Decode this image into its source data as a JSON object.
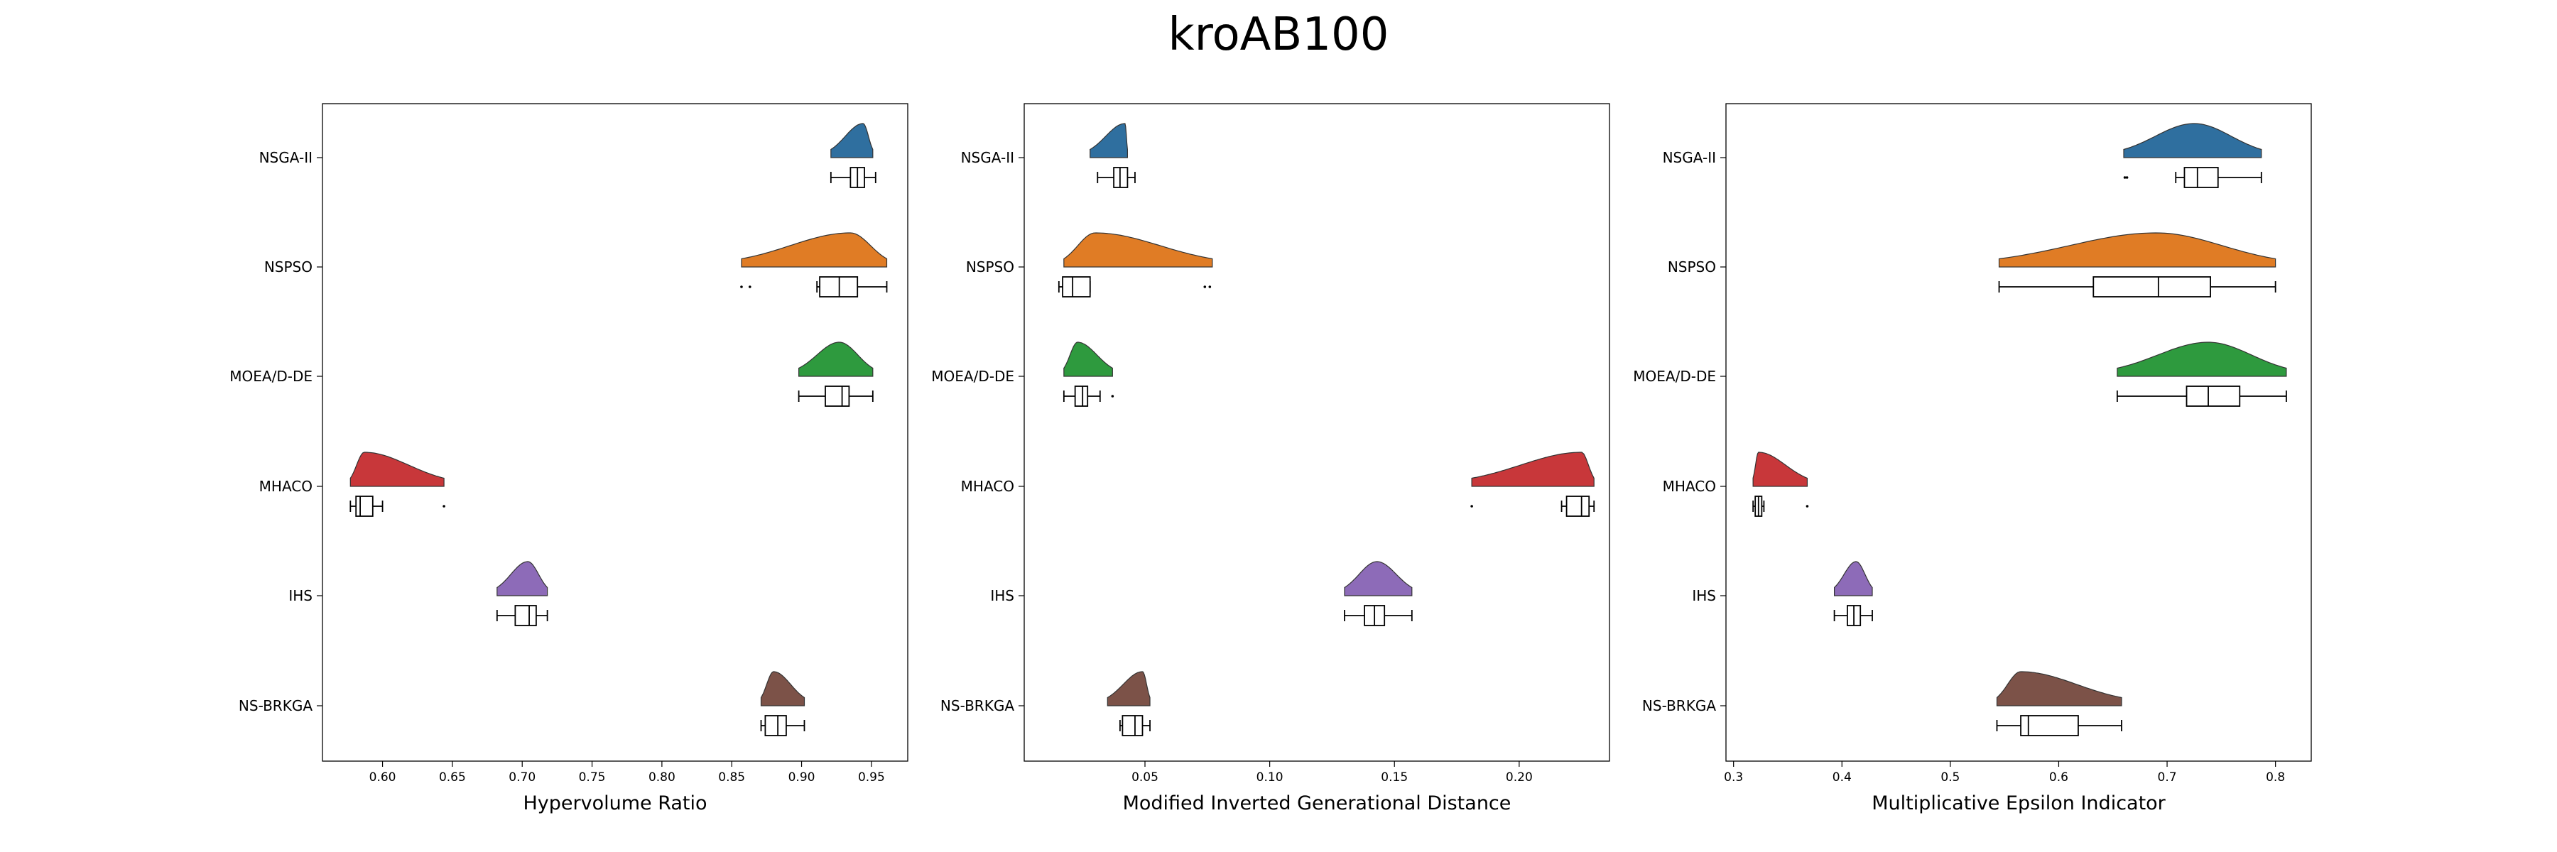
{
  "chart_data": {
    "type": "raincloud",
    "title": "kroAB100",
    "categories": [
      "NSGA-II",
      "NSPSO",
      "MOEA/D-DE",
      "MHACO",
      "IHS",
      "NS-BRKGA"
    ],
    "colors": [
      "#2f6f9f",
      "#e07c25",
      "#2e9a3e",
      "#c8373a",
      "#8d6bb8",
      "#7c5248"
    ],
    "panels": [
      {
        "xlabel": "Hypervolume Ratio",
        "xlim": [
          0.557,
          0.976
        ],
        "xticks": [
          0.6,
          0.65,
          0.7,
          0.75,
          0.8,
          0.85,
          0.9,
          0.95
        ],
        "xtick_labels": [
          "0.60",
          "0.65",
          "0.70",
          "0.75",
          "0.80",
          "0.85",
          "0.90",
          "0.95"
        ],
        "series": [
          {
            "box": {
              "whislo": 0.921,
              "q1": 0.935,
              "med": 0.94,
              "q3": 0.945,
              "whishi": 0.953
            },
            "kde": {
              "min": 0.921,
              "peak": 0.944,
              "max": 0.951
            },
            "outliers": []
          },
          {
            "box": {
              "whislo": 0.911,
              "q1": 0.913,
              "med": 0.927,
              "q3": 0.94,
              "whishi": 0.961
            },
            "kde": {
              "min": 0.857,
              "peak": 0.935,
              "max": 0.961
            },
            "outliers": [
              0.857,
              0.863
            ]
          },
          {
            "box": {
              "whislo": 0.898,
              "q1": 0.917,
              "med": 0.929,
              "q3": 0.934,
              "whishi": 0.951
            },
            "kde": {
              "min": 0.898,
              "peak": 0.927,
              "max": 0.951
            },
            "outliers": []
          },
          {
            "box": {
              "whislo": 0.577,
              "q1": 0.581,
              "med": 0.584,
              "q3": 0.593,
              "whishi": 0.6
            },
            "kde": {
              "min": 0.577,
              "peak": 0.587,
              "max": 0.644
            },
            "outliers": [
              0.644
            ]
          },
          {
            "box": {
              "whislo": 0.682,
              "q1": 0.695,
              "med": 0.705,
              "q3": 0.71,
              "whishi": 0.718
            },
            "kde": {
              "min": 0.682,
              "peak": 0.704,
              "max": 0.718
            },
            "outliers": []
          },
          {
            "box": {
              "whislo": 0.871,
              "q1": 0.874,
              "med": 0.883,
              "q3": 0.889,
              "whishi": 0.902
            },
            "kde": {
              "min": 0.871,
              "peak": 0.88,
              "max": 0.902
            },
            "outliers": []
          }
        ]
      },
      {
        "xlabel": "Modified Inverted Generational Distance",
        "xlim": [
          0.0016,
          0.2362
        ],
        "xticks": [
          0.05,
          0.1,
          0.15,
          0.2
        ],
        "xtick_labels": [
          "0.05",
          "0.10",
          "0.15",
          "0.20"
        ],
        "series": [
          {
            "box": {
              "whislo": 0.031,
              "q1": 0.0375,
              "med": 0.04,
              "q3": 0.043,
              "whishi": 0.046
            },
            "kde": {
              "min": 0.028,
              "peak": 0.042,
              "max": 0.043
            },
            "outliers": []
          },
          {
            "box": {
              "whislo": 0.0155,
              "q1": 0.017,
              "med": 0.021,
              "q3": 0.028,
              "whishi": 0.028
            },
            "kde": {
              "min": 0.0175,
              "peak": 0.03,
              "max": 0.077
            },
            "outliers": [
              0.074,
              0.076
            ]
          },
          {
            "box": {
              "whislo": 0.0175,
              "q1": 0.022,
              "med": 0.025,
              "q3": 0.027,
              "whishi": 0.032
            },
            "kde": {
              "min": 0.0175,
              "peak": 0.023,
              "max": 0.037
            },
            "outliers": [
              0.037
            ]
          },
          {
            "box": {
              "whislo": 0.217,
              "q1": 0.219,
              "med": 0.225,
              "q3": 0.228,
              "whishi": 0.23
            },
            "kde": {
              "min": 0.181,
              "peak": 0.225,
              "max": 0.23
            },
            "outliers": [
              0.181
            ]
          },
          {
            "box": {
              "whislo": 0.13,
              "q1": 0.138,
              "med": 0.142,
              "q3": 0.146,
              "whishi": 0.157
            },
            "kde": {
              "min": 0.13,
              "peak": 0.143,
              "max": 0.157
            },
            "outliers": []
          },
          {
            "box": {
              "whislo": 0.04,
              "q1": 0.041,
              "med": 0.046,
              "q3": 0.049,
              "whishi": 0.052
            },
            "kde": {
              "min": 0.035,
              "peak": 0.049,
              "max": 0.052
            },
            "outliers": []
          }
        ]
      },
      {
        "xlabel": "Multiplicative Epsilon Indicator",
        "xlim": [
          0.293,
          0.833
        ],
        "xticks": [
          0.3,
          0.4,
          0.5,
          0.6,
          0.7,
          0.8
        ],
        "xtick_labels": [
          "0.3",
          "0.4",
          "0.5",
          "0.6",
          "0.7",
          "0.8"
        ],
        "series": [
          {
            "box": {
              "whislo": 0.708,
              "q1": 0.716,
              "med": 0.728,
              "q3": 0.747,
              "whishi": 0.787
            },
            "kde": {
              "min": 0.66,
              "peak": 0.725,
              "max": 0.787
            },
            "outliers": [
              0.661,
              0.663
            ]
          },
          {
            "box": {
              "whislo": 0.545,
              "q1": 0.632,
              "med": 0.692,
              "q3": 0.74,
              "whishi": 0.8
            },
            "kde": {
              "min": 0.545,
              "peak": 0.69,
              "max": 0.8
            },
            "outliers": []
          },
          {
            "box": {
              "whislo": 0.654,
              "q1": 0.718,
              "med": 0.738,
              "q3": 0.767,
              "whishi": 0.81
            },
            "kde": {
              "min": 0.654,
              "peak": 0.738,
              "max": 0.81
            },
            "outliers": []
          },
          {
            "box": {
              "whislo": 0.318,
              "q1": 0.32,
              "med": 0.323,
              "q3": 0.326,
              "whishi": 0.328
            },
            "kde": {
              "min": 0.318,
              "peak": 0.323,
              "max": 0.368
            },
            "outliers": [
              0.368
            ]
          },
          {
            "box": {
              "whislo": 0.393,
              "q1": 0.405,
              "med": 0.411,
              "q3": 0.417,
              "whishi": 0.428
            },
            "kde": {
              "min": 0.393,
              "peak": 0.413,
              "max": 0.428
            },
            "outliers": []
          },
          {
            "box": {
              "whislo": 0.543,
              "q1": 0.565,
              "med": 0.572,
              "q3": 0.618,
              "whishi": 0.658
            },
            "kde": {
              "min": 0.543,
              "peak": 0.565,
              "max": 0.658
            },
            "outliers": []
          }
        ]
      }
    ]
  }
}
